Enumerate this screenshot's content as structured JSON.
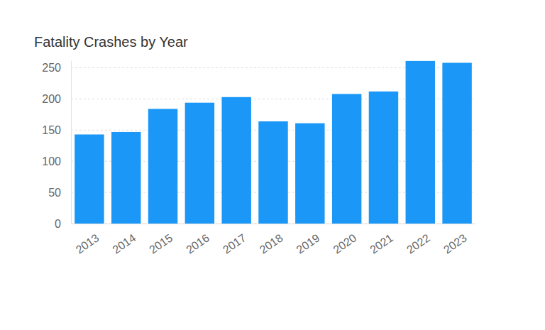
{
  "chart_data": {
    "type": "bar",
    "title": "Fatality Crashes by Year",
    "categories": [
      "2013",
      "2014",
      "2015",
      "2016",
      "2017",
      "2018",
      "2019",
      "2020",
      "2021",
      "2022",
      "2023"
    ],
    "values": [
      143,
      147,
      184,
      194,
      203,
      164,
      161,
      208,
      212,
      261,
      258
    ],
    "color": "#1b98f7",
    "ylim": [
      0,
      262
    ],
    "yticks": [
      0,
      50,
      100,
      150,
      200,
      250
    ],
    "grid": true
  }
}
